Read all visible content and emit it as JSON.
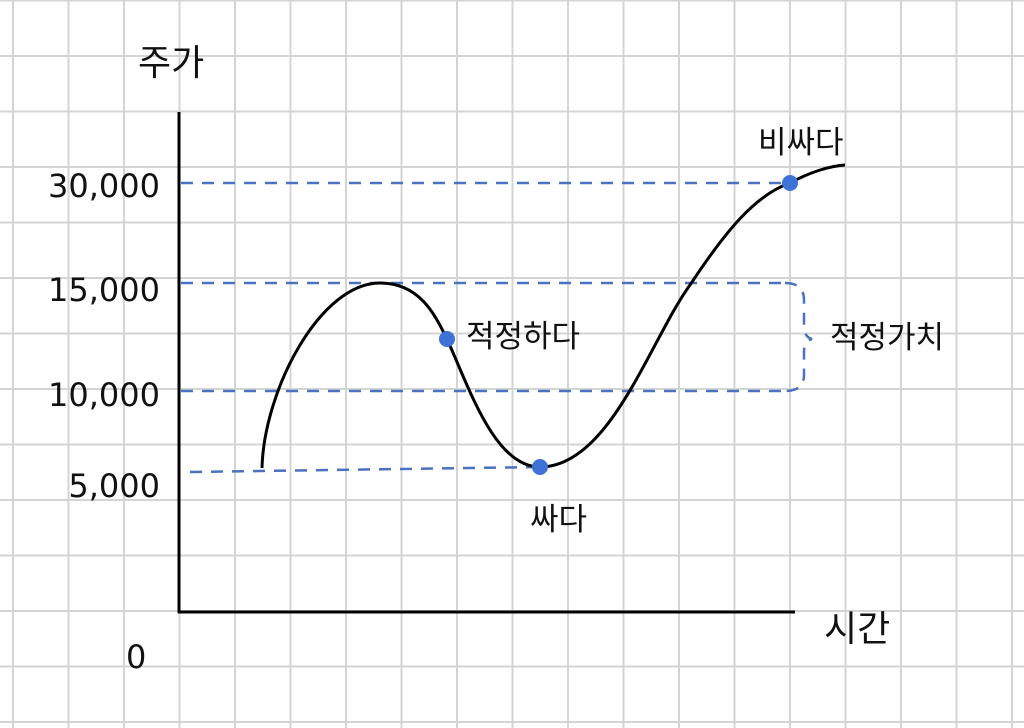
{
  "axes": {
    "y_label": "주가",
    "x_label": "시간",
    "origin_label": "0",
    "y_ticks": [
      "30,000",
      "15,000",
      "10,000",
      "5,000"
    ]
  },
  "annotations": {
    "expensive": "비싸다",
    "fair": "적정하다",
    "cheap": "싸다",
    "fair_value_range": "적정가치"
  },
  "colors": {
    "grid": "#d4d4d4",
    "guide_dash": "#4a72c0",
    "point": "#3f72d6",
    "curve": "#000000"
  }
}
